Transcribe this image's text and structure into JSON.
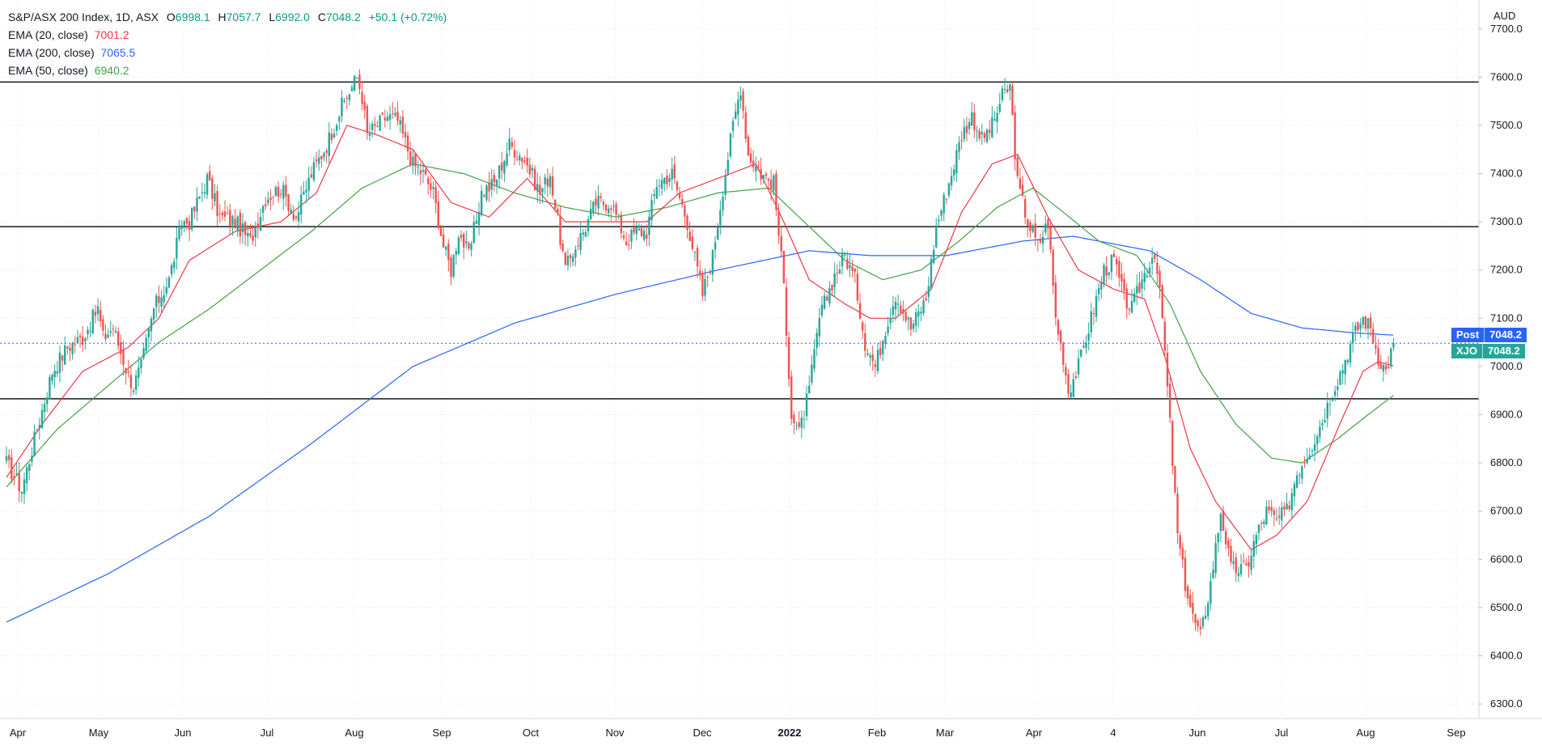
{
  "legend": {
    "symbol": "S&P/ASX 200 Index, 1D, ASX",
    "o_label": "O",
    "o_value": "6998.1",
    "h_label": "H",
    "h_value": "7057.7",
    "l_label": "L",
    "l_value": "6992.0",
    "c_label": "C",
    "c_value": "7048.2",
    "change": "+50.1 (+0.72%)",
    "ema20_label": "EMA (20, close)",
    "ema20_value": "7001.2",
    "ema200_label": "EMA (200, close)",
    "ema200_value": "7065.5",
    "ema50_label": "EMA (50, close)",
    "ema50_value": "6940.2"
  },
  "price_tags": {
    "post_label": "Post",
    "post_value": "7048.2",
    "xjo_label": "XJO",
    "xjo_value": "7048.2"
  },
  "colors": {
    "up": "#26a69a",
    "down": "#ef5350",
    "ema20": "#f23645",
    "ema200": "#2962ff",
    "ema50": "#43a047",
    "post_tag": "#2962ff",
    "xjo_tag": "#26a69a"
  },
  "chart_data": {
    "type": "candlestick",
    "currency": "AUD",
    "ylim": [
      6270,
      7760
    ],
    "y_ticks": [
      "7700.0",
      "7600.0",
      "7500.0",
      "7400.0",
      "7300.0",
      "7200.0",
      "7100.0",
      "7000.0",
      "6900.0",
      "6800.0",
      "6700.0",
      "6600.0",
      "6500.0",
      "6400.0",
      "6300.0"
    ],
    "x_ticks": [
      "Apr",
      "May",
      "Jun",
      "Jul",
      "Aug",
      "Sep",
      "Oct",
      "Nov",
      "Dec",
      "2022",
      "Feb",
      "Mar",
      "Apr",
      "4",
      "Jun",
      "Jul",
      "Aug",
      "Sep"
    ],
    "horizontal_levels": [
      7590,
      7290,
      6933
    ],
    "last_price": 7048.2,
    "price_path": [
      [
        0,
        6800
      ],
      [
        6,
        6745
      ],
      [
        12,
        6870
      ],
      [
        18,
        6990
      ],
      [
        24,
        7040
      ],
      [
        30,
        7060
      ],
      [
        36,
        7120
      ],
      [
        38,
        7060
      ],
      [
        42,
        7080
      ],
      [
        48,
        6980
      ],
      [
        50,
        6960
      ],
      [
        53,
        7000
      ],
      [
        58,
        7120
      ],
      [
        64,
        7180
      ],
      [
        69,
        7300
      ],
      [
        72,
        7300
      ],
      [
        79,
        7390
      ],
      [
        84,
        7310
      ],
      [
        90,
        7300
      ],
      [
        96,
        7260
      ],
      [
        102,
        7350
      ],
      [
        108,
        7370
      ],
      [
        114,
        7310
      ],
      [
        120,
        7400
      ],
      [
        126,
        7460
      ],
      [
        132,
        7540
      ],
      [
        138,
        7600
      ],
      [
        140,
        7560
      ],
      [
        142,
        7480
      ],
      [
        146,
        7500
      ],
      [
        150,
        7520
      ],
      [
        154,
        7510
      ],
      [
        160,
        7420
      ],
      [
        164,
        7400
      ],
      [
        168,
        7360
      ],
      [
        172,
        7250
      ],
      [
        175,
        7200
      ],
      [
        178,
        7280
      ],
      [
        182,
        7230
      ],
      [
        187,
        7360
      ],
      [
        192,
        7380
      ],
      [
        198,
        7460
      ],
      [
        204,
        7430
      ],
      [
        210,
        7360
      ],
      [
        214,
        7400
      ],
      [
        217,
        7300
      ],
      [
        220,
        7200
      ],
      [
        224,
        7250
      ],
      [
        228,
        7290
      ],
      [
        232,
        7340
      ],
      [
        238,
        7340
      ],
      [
        244,
        7260
      ],
      [
        248,
        7280
      ],
      [
        252,
        7280
      ],
      [
        256,
        7380
      ],
      [
        262,
        7400
      ],
      [
        268,
        7300
      ],
      [
        274,
        7150
      ],
      [
        278,
        7230
      ],
      [
        282,
        7370
      ],
      [
        286,
        7500
      ],
      [
        289,
        7580
      ],
      [
        292,
        7440
      ],
      [
        297,
        7400
      ],
      [
        302,
        7380
      ],
      [
        306,
        7170
      ],
      [
        309,
        6900
      ],
      [
        312,
        6860
      ],
      [
        316,
        6950
      ],
      [
        320,
        7100
      ],
      [
        326,
        7190
      ],
      [
        330,
        7230
      ],
      [
        334,
        7180
      ],
      [
        338,
        7050
      ],
      [
        342,
        7000
      ],
      [
        346,
        7080
      ],
      [
        350,
        7150
      ],
      [
        356,
        7080
      ],
      [
        362,
        7140
      ],
      [
        366,
        7290
      ],
      [
        372,
        7400
      ],
      [
        376,
        7480
      ],
      [
        380,
        7520
      ],
      [
        384,
        7470
      ],
      [
        388,
        7500
      ],
      [
        392,
        7560
      ],
      [
        395,
        7580
      ],
      [
        398,
        7380
      ],
      [
        402,
        7300
      ],
      [
        406,
        7250
      ],
      [
        410,
        7300
      ],
      [
        413,
        7100
      ],
      [
        416,
        7020
      ],
      [
        418,
        6950
      ],
      [
        422,
        7000
      ],
      [
        428,
        7120
      ],
      [
        432,
        7200
      ],
      [
        436,
        7220
      ],
      [
        440,
        7140
      ],
      [
        443,
        7120
      ],
      [
        447,
        7180
      ],
      [
        452,
        7240
      ],
      [
        455,
        7100
      ],
      [
        458,
        6880
      ],
      [
        461,
        6650
      ],
      [
        464,
        6550
      ],
      [
        467,
        6480
      ],
      [
        470,
        6440
      ],
      [
        474,
        6550
      ],
      [
        478,
        6700
      ],
      [
        482,
        6580
      ],
      [
        488,
        6580
      ],
      [
        492,
        6650
      ],
      [
        496,
        6700
      ],
      [
        500,
        6680
      ],
      [
        504,
        6700
      ],
      [
        508,
        6780
      ],
      [
        514,
        6840
      ],
      [
        518,
        6890
      ],
      [
        522,
        6950
      ],
      [
        526,
        7000
      ],
      [
        530,
        7060
      ],
      [
        534,
        7100
      ],
      [
        537,
        7080
      ],
      [
        540,
        7020
      ],
      [
        543,
        6990
      ],
      [
        546,
        7048
      ]
    ],
    "ema20_path": [
      [
        0,
        6770
      ],
      [
        14,
        6880
      ],
      [
        30,
        6990
      ],
      [
        48,
        7040
      ],
      [
        60,
        7100
      ],
      [
        72,
        7220
      ],
      [
        90,
        7280
      ],
      [
        108,
        7300
      ],
      [
        122,
        7360
      ],
      [
        134,
        7500
      ],
      [
        146,
        7480
      ],
      [
        160,
        7450
      ],
      [
        175,
        7340
      ],
      [
        190,
        7310
      ],
      [
        205,
        7390
      ],
      [
        220,
        7300
      ],
      [
        235,
        7300
      ],
      [
        252,
        7300
      ],
      [
        265,
        7360
      ],
      [
        280,
        7390
      ],
      [
        295,
        7420
      ],
      [
        306,
        7300
      ],
      [
        316,
        7180
      ],
      [
        330,
        7130
      ],
      [
        340,
        7100
      ],
      [
        350,
        7100
      ],
      [
        364,
        7160
      ],
      [
        376,
        7320
      ],
      [
        388,
        7420
      ],
      [
        398,
        7440
      ],
      [
        410,
        7310
      ],
      [
        422,
        7200
      ],
      [
        436,
        7160
      ],
      [
        448,
        7140
      ],
      [
        456,
        7020
      ],
      [
        466,
        6830
      ],
      [
        476,
        6720
      ],
      [
        490,
        6620
      ],
      [
        500,
        6650
      ],
      [
        512,
        6720
      ],
      [
        524,
        6870
      ],
      [
        534,
        6990
      ],
      [
        540,
        7010
      ],
      [
        546,
        7001
      ]
    ],
    "ema50_path": [
      [
        0,
        6750
      ],
      [
        20,
        6870
      ],
      [
        40,
        6960
      ],
      [
        60,
        7050
      ],
      [
        80,
        7120
      ],
      [
        100,
        7200
      ],
      [
        120,
        7280
      ],
      [
        140,
        7370
      ],
      [
        160,
        7420
      ],
      [
        180,
        7400
      ],
      [
        200,
        7360
      ],
      [
        220,
        7330
      ],
      [
        240,
        7310
      ],
      [
        260,
        7330
      ],
      [
        280,
        7360
      ],
      [
        300,
        7370
      ],
      [
        316,
        7290
      ],
      [
        330,
        7220
      ],
      [
        345,
        7180
      ],
      [
        360,
        7200
      ],
      [
        375,
        7260
      ],
      [
        390,
        7330
      ],
      [
        404,
        7370
      ],
      [
        416,
        7320
      ],
      [
        430,
        7260
      ],
      [
        445,
        7230
      ],
      [
        458,
        7130
      ],
      [
        470,
        6990
      ],
      [
        484,
        6880
      ],
      [
        498,
        6810
      ],
      [
        510,
        6800
      ],
      [
        524,
        6850
      ],
      [
        536,
        6900
      ],
      [
        546,
        6940
      ]
    ],
    "ema200_path": [
      [
        0,
        6470
      ],
      [
        40,
        6570
      ],
      [
        80,
        6690
      ],
      [
        120,
        6840
      ],
      [
        160,
        7000
      ],
      [
        200,
        7090
      ],
      [
        240,
        7150
      ],
      [
        280,
        7200
      ],
      [
        316,
        7240
      ],
      [
        340,
        7230
      ],
      [
        370,
        7230
      ],
      [
        400,
        7260
      ],
      [
        420,
        7270
      ],
      [
        450,
        7240
      ],
      [
        470,
        7180
      ],
      [
        490,
        7110
      ],
      [
        510,
        7080
      ],
      [
        530,
        7070
      ],
      [
        546,
        7065
      ]
    ]
  }
}
